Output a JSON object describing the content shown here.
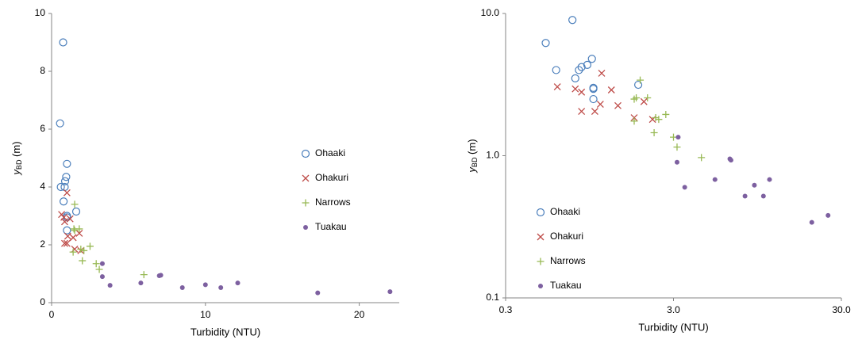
{
  "chart_data": [
    {
      "type": "scatter",
      "xlabel": "Turbidity (NTU)",
      "ylabel": {
        "main": "y",
        "sub": "BD",
        "unit": "(m)"
      },
      "xlim": [
        0,
        22.6
      ],
      "ylim": [
        0,
        10
      ],
      "xticks": [
        0,
        10,
        20
      ],
      "yticks": [
        0,
        2,
        4,
        6,
        8,
        10
      ],
      "xscale": "linear",
      "yscale": "linear",
      "legend": "right",
      "series": [
        {
          "name": "Ohaaki",
          "color": "#4a7ebb",
          "marker": "circle",
          "x": [
            0.55,
            0.75,
            0.6,
            0.85,
            0.88,
            0.95,
            1.0,
            0.78,
            1.0,
            1.0,
            1.0,
            1.6
          ],
          "values": [
            6.2,
            9.0,
            4.0,
            4.0,
            4.2,
            4.35,
            4.8,
            3.5,
            3.0,
            2.95,
            2.5,
            3.15
          ]
        },
        {
          "name": "Ohakuri",
          "color": "#be4b48",
          "marker": "cross",
          "x": [
            0.65,
            0.8,
            0.85,
            1.0,
            0.85,
            1.0,
            1.05,
            1.2,
            1.4,
            1.5,
            1.8,
            1.9
          ],
          "values": [
            3.05,
            2.95,
            2.8,
            3.8,
            2.05,
            2.05,
            2.3,
            2.9,
            2.25,
            1.85,
            2.4,
            1.8
          ]
        },
        {
          "name": "Narrows",
          "color": "#98b954",
          "marker": "plus",
          "x": [
            1.5,
            1.45,
            1.5,
            1.4,
            1.8,
            1.9,
            2.0,
            2.1,
            2.5,
            2.9,
            3.1,
            6.0
          ],
          "values": [
            3.4,
            2.55,
            2.5,
            1.75,
            2.55,
            1.85,
            1.45,
            1.8,
            1.95,
            1.35,
            1.15,
            0.97
          ]
        },
        {
          "name": "Tuakau",
          "color": "#7d60a0",
          "marker": "dot",
          "x": [
            3.3,
            3.3,
            3.8,
            5.8,
            7.0,
            7.1,
            8.5,
            10.0,
            11.0,
            12.1,
            17.3,
            22.0
          ],
          "values": [
            1.35,
            0.9,
            0.6,
            0.68,
            0.93,
            0.95,
            0.52,
            0.62,
            0.52,
            0.68,
            0.34,
            0.38
          ]
        }
      ]
    },
    {
      "type": "scatter",
      "xlabel": "Turbidity (NTU)",
      "ylabel": {
        "main": "y",
        "sub": "BD",
        "unit": "(m)"
      },
      "xlim": [
        0.3,
        30
      ],
      "ylim": [
        0.1,
        10
      ],
      "xticks": [
        0.3,
        {
          "value": 3,
          "label": "3.0"
        },
        {
          "value": 30,
          "label": "30.0"
        }
      ],
      "yticks": [
        0.1,
        {
          "value": 1,
          "label": "1.0"
        },
        {
          "value": 10,
          "label": "10.0"
        }
      ],
      "xscale": "log",
      "yscale": "log",
      "legend": "lower left",
      "series": [
        {
          "name": "Ohaaki",
          "color": "#4a7ebb",
          "marker": "circle",
          "x": [
            0.52,
            0.75,
            0.6,
            0.82,
            0.85,
            0.92,
            0.98,
            0.78,
            1.0,
            1.0,
            1.0,
            1.85
          ],
          "values": [
            6.2,
            9.0,
            4.0,
            4.0,
            4.2,
            4.35,
            4.8,
            3.5,
            3.0,
            2.95,
            2.5,
            3.15
          ]
        },
        {
          "name": "Ohakuri",
          "color": "#be4b48",
          "marker": "cross",
          "x": [
            0.61,
            0.78,
            0.85,
            1.12,
            0.85,
            1.02,
            1.1,
            1.28,
            1.4,
            1.75,
            2.0,
            2.25
          ],
          "values": [
            3.05,
            2.95,
            2.8,
            3.8,
            2.05,
            2.05,
            2.3,
            2.9,
            2.25,
            1.85,
            2.4,
            1.8
          ]
        },
        {
          "name": "Narrows",
          "color": "#98b954",
          "marker": "plus",
          "x": [
            1.9,
            1.8,
            1.75,
            1.75,
            2.1,
            2.35,
            2.3,
            2.45,
            2.7,
            3.0,
            3.15,
            4.4
          ],
          "values": [
            3.4,
            2.55,
            2.5,
            1.75,
            2.55,
            1.85,
            1.45,
            1.8,
            1.95,
            1.35,
            1.15,
            0.97
          ]
        },
        {
          "name": "Tuakau",
          "color": "#7d60a0",
          "marker": "dot",
          "x": [
            3.2,
            3.15,
            3.5,
            5.3,
            6.6,
            6.5,
            8.0,
            9.1,
            10.3,
            11.2,
            20.0,
            25.0
          ],
          "values": [
            1.35,
            0.9,
            0.6,
            0.68,
            0.93,
            0.95,
            0.52,
            0.62,
            0.52,
            0.68,
            0.34,
            0.38
          ]
        }
      ]
    }
  ]
}
